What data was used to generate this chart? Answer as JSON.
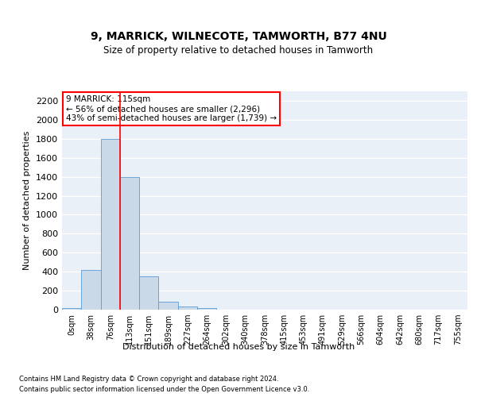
{
  "title": "9, MARRICK, WILNECOTE, TAMWORTH, B77 4NU",
  "subtitle": "Size of property relative to detached houses in Tamworth",
  "xlabel": "Distribution of detached houses by size in Tamworth",
  "ylabel": "Number of detached properties",
  "bar_labels": [
    "0sqm",
    "38sqm",
    "76sqm",
    "113sqm",
    "151sqm",
    "189sqm",
    "227sqm",
    "264sqm",
    "302sqm",
    "340sqm",
    "378sqm",
    "415sqm",
    "453sqm",
    "491sqm",
    "529sqm",
    "566sqm",
    "604sqm",
    "642sqm",
    "680sqm",
    "717sqm",
    "755sqm"
  ],
  "bar_values": [
    15,
    420,
    1800,
    1400,
    350,
    80,
    35,
    20,
    0,
    0,
    0,
    0,
    0,
    0,
    0,
    0,
    0,
    0,
    0,
    0,
    0
  ],
  "bar_color": "#c9d9e8",
  "bar_edge_color": "#5b9bd5",
  "bg_color": "#eaf0f7",
  "grid_color": "#ffffff",
  "vline_color": "red",
  "annotation_text": "9 MARRICK: 115sqm\n← 56% of detached houses are smaller (2,296)\n43% of semi-detached houses are larger (1,739) →",
  "annotation_box_color": "white",
  "annotation_border_color": "red",
  "ylim": [
    0,
    2300
  ],
  "yticks": [
    0,
    200,
    400,
    600,
    800,
    1000,
    1200,
    1400,
    1600,
    1800,
    2000,
    2200
  ],
  "footer_line1": "Contains HM Land Registry data © Crown copyright and database right 2024.",
  "footer_line2": "Contains public sector information licensed under the Open Government Licence v3.0."
}
